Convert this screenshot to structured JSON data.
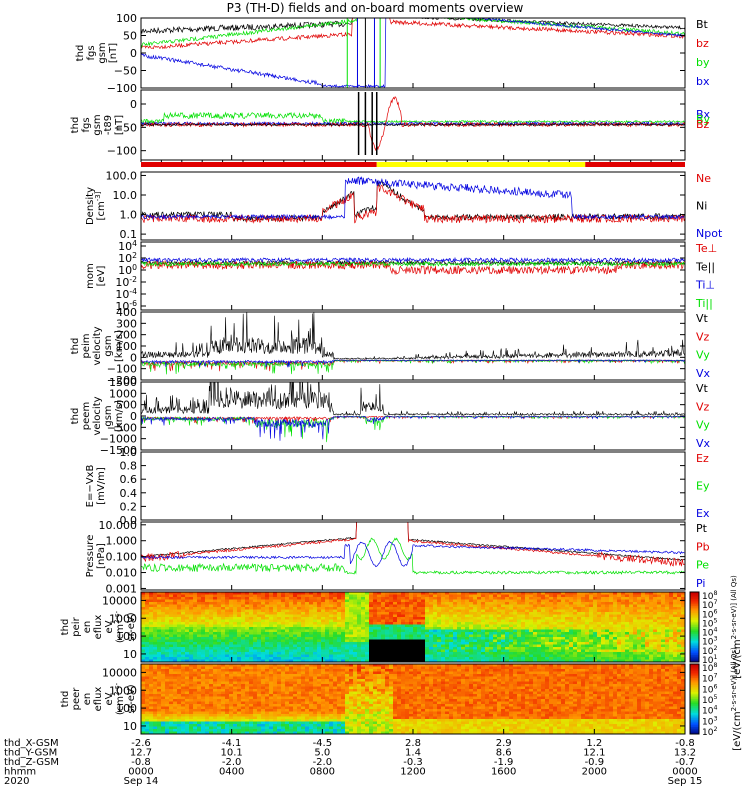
{
  "title": "P3 (TH-D) fields and on-board moments overview",
  "colors": {
    "black": "#000000",
    "red": "#e00000",
    "green": "#00e000",
    "blue": "#0000e0",
    "yellow": "#ffff00"
  },
  "chart_data": [
    {
      "type": "line",
      "ylabel": [
        "thd",
        "fgs",
        "gsm",
        "[nT]"
      ],
      "ylim": [
        -100,
        100
      ],
      "yticks": [
        "100",
        "50",
        "0",
        "−50",
        "−100"
      ],
      "ytick_values": [
        100,
        50,
        0,
        -50,
        -100
      ],
      "legend": [
        {
          "name": "Bt",
          "color": "black"
        },
        {
          "name": "bz",
          "color": "red"
        },
        {
          "name": "by",
          "color": "green"
        },
        {
          "name": "bx",
          "color": "blue"
        }
      ]
    },
    {
      "type": "line",
      "ylabel": [
        "thd",
        "fgs",
        "gsm",
        "-t89",
        "[nT]"
      ],
      "ylim": [
        -120,
        30
      ],
      "yticks": [
        "0",
        "−50",
        "−100"
      ],
      "ytick_values": [
        0,
        -50,
        -100
      ],
      "legend": [
        {
          "name": "Bx",
          "color": "blue"
        },
        {
          "name": "By",
          "color": "green"
        },
        {
          "name": "Bz",
          "color": "red"
        }
      ]
    },
    {
      "type": "line",
      "ylabel": [
        "Density",
        "[cm^-3]"
      ],
      "yscale": "log",
      "ylim": [
        0.05,
        150
      ],
      "yticks": [
        "100.0",
        "10.0",
        "1.0",
        "0.1"
      ],
      "ytick_values": [
        100,
        10,
        1,
        0.1
      ],
      "legend": [
        {
          "name": "Ne",
          "color": "red"
        },
        {
          "name": "Ni",
          "color": "black"
        },
        {
          "name": "Npot",
          "color": "blue"
        }
      ]
    },
    {
      "type": "line",
      "ylabel": [
        "mom",
        "[eV]"
      ],
      "yscale": "log",
      "yticks": [
        "10^4",
        "10^2",
        "10^0",
        "10^-2",
        "10^-4",
        "10^-6"
      ],
      "legend": [
        {
          "name": "Te⊥",
          "color": "red"
        },
        {
          "name": "Te||",
          "color": "black"
        },
        {
          "name": "Ti⊥",
          "color": "blue"
        },
        {
          "name": "Ti||",
          "color": "green"
        }
      ]
    },
    {
      "type": "line",
      "ylabel": [
        "thd",
        "peim",
        "velocity",
        "gsm",
        "[km/s]"
      ],
      "ylim": [
        -200,
        400
      ],
      "yticks": [
        "400",
        "300",
        "200",
        "100",
        "0",
        "−100",
        "−200"
      ],
      "ytick_values": [
        400,
        300,
        200,
        100,
        0,
        -100,
        -200
      ],
      "legend": [
        {
          "name": "Vt",
          "color": "black"
        },
        {
          "name": "Vz",
          "color": "red"
        },
        {
          "name": "Vy",
          "color": "green"
        },
        {
          "name": "Vx",
          "color": "blue"
        }
      ]
    },
    {
      "type": "line",
      "ylabel": [
        "thd",
        "peem",
        "velocity",
        "gsm",
        "[km/s]"
      ],
      "ylim": [
        -1500,
        1500
      ],
      "yticks": [
        "1500",
        "1000",
        "500",
        "0",
        "−500",
        "−1000",
        "−1500"
      ],
      "ytick_values": [
        1500,
        1000,
        500,
        0,
        -500,
        -1000,
        -1500
      ],
      "legend": [
        {
          "name": "Vt",
          "color": "black"
        },
        {
          "name": "Vz",
          "color": "red"
        },
        {
          "name": "Vy",
          "color": "green"
        },
        {
          "name": "Vx",
          "color": "blue"
        }
      ]
    },
    {
      "type": "line",
      "ylabel": [
        "E=−VxB",
        "[mV/m]"
      ],
      "ylim": [
        0,
        1
      ],
      "yticks": [
        "1.0",
        "0.8",
        "0.6",
        "0.4",
        "0.2",
        "0.0"
      ],
      "ytick_values": [
        1,
        0.8,
        0.6,
        0.4,
        0.2,
        0
      ],
      "legend": [
        {
          "name": "Ez",
          "color": "red"
        },
        {
          "name": "Ey",
          "color": "green"
        },
        {
          "name": "Ex",
          "color": "blue"
        }
      ]
    },
    {
      "type": "line",
      "ylabel": [
        "Pressure",
        "[nPa]"
      ],
      "yscale": "log",
      "ylim": [
        0.0008,
        15
      ],
      "yticks": [
        "10.000",
        "1.000",
        "0.100",
        "0.010",
        "0.001"
      ],
      "ytick_values": [
        10,
        1,
        0.1,
        0.01,
        0.001
      ],
      "legend": [
        {
          "name": "Pt",
          "color": "black"
        },
        {
          "name": "Pb",
          "color": "red"
        },
        {
          "name": "Pe",
          "color": "green"
        },
        {
          "name": "Pi",
          "color": "blue"
        }
      ]
    },
    {
      "type": "heatmap",
      "ylabel": [
        "thd",
        "peir",
        "en",
        "eflux",
        "eV",
        "(cm^2-s-",
        "sr-eV)"
      ],
      "yscale": "log",
      "yticks": [
        "10000",
        "1000",
        "100",
        "10"
      ],
      "ytick_values": [
        10000,
        1000,
        100,
        10
      ],
      "colorbar": {
        "ticks": [
          "10^8",
          "10^7",
          "10^6",
          "10^5",
          "10^4",
          "10^3",
          "10^2",
          "10^1"
        ],
        "label": "[eV/(cm^2-s-sr-eV)] (All Qs)"
      }
    },
    {
      "type": "heatmap",
      "ylabel": [
        "thd",
        "peer",
        "en",
        "eflux",
        "eV",
        "(cm^2-s-",
        "sr-eV)"
      ],
      "yscale": "log",
      "yticks": [
        "10000",
        "1000",
        "100",
        "10"
      ],
      "ytick_values": [
        10000,
        1000,
        100,
        10
      ],
      "colorbar": {
        "ticks": [
          "10^8",
          "10^7",
          "10^6",
          "10^5",
          "10^4",
          "10^3",
          "10^2"
        ],
        "label": "[eV/(cm^2-s-sr-eV)] (All Qs)"
      }
    }
  ],
  "xaxis": {
    "rows": [
      {
        "label": "thd_X-GSM",
        "values": [
          "-2.6",
          "-4.1",
          "-4.5",
          "2.8",
          "2.9",
          "1.2",
          "-0.8"
        ]
      },
      {
        "label": "thd_Y-GSM",
        "values": [
          "12.7",
          "10.1",
          "5.0",
          "1.4",
          "8.6",
          "12.1",
          "13.2"
        ]
      },
      {
        "label": "thd_Z-GSM",
        "values": [
          "-0.8",
          "-2.0",
          "-2.0",
          "-0.3",
          "-1.9",
          "-0.9",
          "-0.7"
        ]
      },
      {
        "label": "hhmm",
        "values": [
          "0000",
          "0400",
          "0800",
          "1200",
          "1600",
          "2000",
          "0000"
        ]
      },
      {
        "label": "2020",
        "values": [
          "Sep 14",
          "",
          "",
          "",
          "",
          "",
          "Sep 15"
        ]
      }
    ],
    "hours": [
      0,
      4,
      8,
      12,
      16,
      20,
      24
    ]
  },
  "mode_bar": [
    {
      "from": 0,
      "to": 10.4,
      "color": "red"
    },
    {
      "from": 10.4,
      "to": 19.6,
      "color": "yellow"
    },
    {
      "from": 19.6,
      "to": 24,
      "color": "red"
    }
  ]
}
